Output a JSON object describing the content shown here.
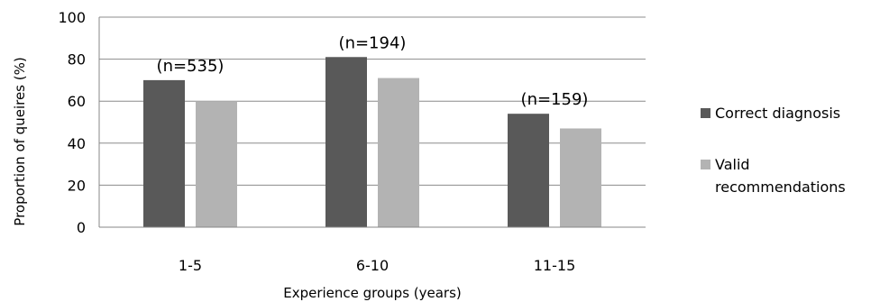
{
  "chart_data": {
    "type": "bar",
    "title": "",
    "xlabel": "Experience groups (years)",
    "ylabel": "Proportion of queires (%)",
    "ylim": [
      0,
      100
    ],
    "yticks": [
      0,
      20,
      40,
      60,
      80,
      100
    ],
    "grid": true,
    "legend_position": "right",
    "categories": [
      "1-5",
      "6-10",
      "11-15"
    ],
    "annotations": [
      "(n=535)",
      "(n=194)",
      "(n=159)"
    ],
    "series": [
      {
        "name": "Correct diagnosis",
        "color": "#595959",
        "values": [
          70,
          81,
          54
        ]
      },
      {
        "name": "Valid recommendations",
        "legend_lines": [
          "Valid",
          "recommendations"
        ],
        "color": "#b3b3b3",
        "values": [
          60,
          71,
          47
        ]
      }
    ]
  }
}
